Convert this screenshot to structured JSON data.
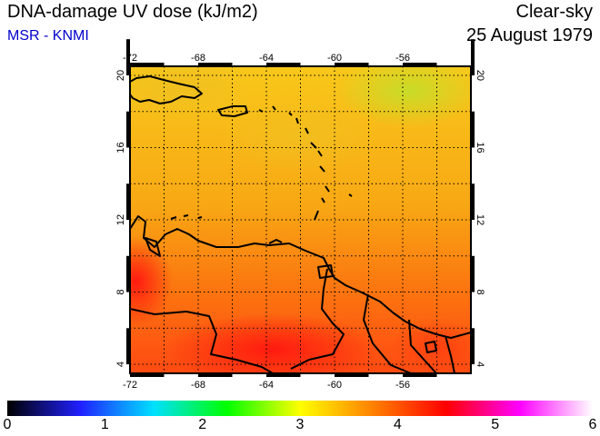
{
  "header": {
    "title": "DNA-damage UV dose (kJ/m2)",
    "credit": "MSR - KNMI",
    "sky": "Clear-sky",
    "date": "25 August 1979"
  },
  "map": {
    "lon_ticks": [
      "-72",
      "-68",
      "-64",
      "-60",
      "-56"
    ],
    "lat_ticks": [
      "20",
      "16",
      "12",
      "8",
      "4"
    ],
    "lon_range": [
      -72,
      -52
    ],
    "lat_range": [
      3.5,
      20.5
    ],
    "colors": {
      "land_outline": "#000000",
      "grid": "#000000"
    }
  },
  "colorbar": {
    "labels": [
      "0",
      "1",
      "2",
      "3",
      "4",
      "5",
      "6"
    ],
    "range": [
      0,
      6
    ],
    "colors": [
      "#000000",
      "#2020ff",
      "#00e0ff",
      "#00ff00",
      "#ffff00",
      "#ff8000",
      "#ff0000",
      "#ff00ff",
      "#ffffff"
    ]
  }
}
